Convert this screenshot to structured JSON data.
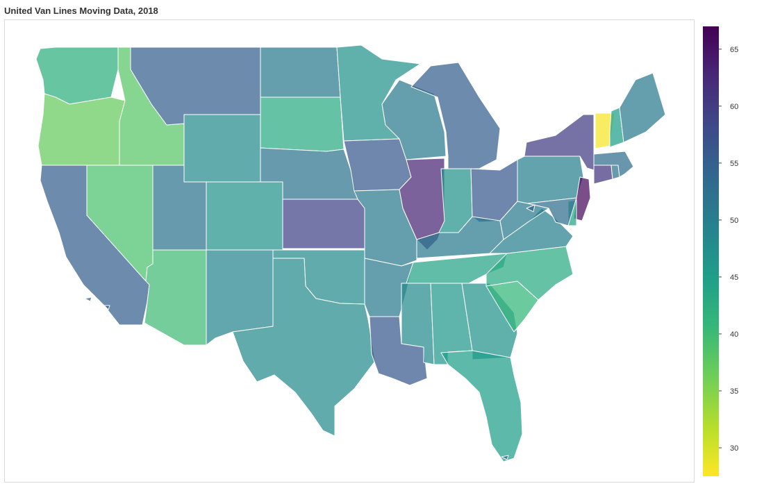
{
  "title": "United Van Lines Moving Data, 2018",
  "colorbar": {
    "min": 27.5,
    "max": 67,
    "ticks": [
      30,
      35,
      40,
      45,
      50,
      55,
      60,
      65
    ],
    "colorscale": [
      "#fde725",
      "#b5de2b",
      "#6ece58",
      "#35b779",
      "#1f9e89",
      "#26828e",
      "#31688e",
      "#3e4989",
      "#482878",
      "#440154"
    ]
  },
  "chart_data": {
    "type": "choropleth",
    "title": "United Van Lines Moving Data, 2018",
    "color_range": [
      27.5,
      67
    ],
    "states": [
      {
        "name": "Washington",
        "value": 42
      },
      {
        "name": "Oregon",
        "value": 37
      },
      {
        "name": "California",
        "value": 55
      },
      {
        "name": "Idaho",
        "value": 38
      },
      {
        "name": "Nevada",
        "value": 39
      },
      {
        "name": "Arizona",
        "value": 40
      },
      {
        "name": "Montana",
        "value": 55
      },
      {
        "name": "Wyoming",
        "value": 48
      },
      {
        "name": "Utah",
        "value": 52
      },
      {
        "name": "Colorado",
        "value": 47
      },
      {
        "name": "New Mexico",
        "value": 49
      },
      {
        "name": "North Dakota",
        "value": 51
      },
      {
        "name": "South Dakota",
        "value": 43
      },
      {
        "name": "Nebraska",
        "value": 52
      },
      {
        "name": "Kansas",
        "value": 59
      },
      {
        "name": "Oklahoma",
        "value": 48
      },
      {
        "name": "Texas",
        "value": 48
      },
      {
        "name": "Minnesota",
        "value": 47
      },
      {
        "name": "Iowa",
        "value": 56
      },
      {
        "name": "Missouri",
        "value": 51
      },
      {
        "name": "Arkansas",
        "value": 51
      },
      {
        "name": "Louisiana",
        "value": 56
      },
      {
        "name": "Wisconsin",
        "value": 51
      },
      {
        "name": "Illinois",
        "value": 63
      },
      {
        "name": "Michigan",
        "value": 55
      },
      {
        "name": "Indiana",
        "value": 47
      },
      {
        "name": "Ohio",
        "value": 56
      },
      {
        "name": "Kentucky",
        "value": 51
      },
      {
        "name": "Tennessee",
        "value": 44
      },
      {
        "name": "Mississippi",
        "value": 48
      },
      {
        "name": "Alabama",
        "value": 46
      },
      {
        "name": "Georgia",
        "value": 47
      },
      {
        "name": "Florida",
        "value": 45
      },
      {
        "name": "South Carolina",
        "value": 41
      },
      {
        "name": "North Carolina",
        "value": 43
      },
      {
        "name": "Virginia",
        "value": 50
      },
      {
        "name": "West Virginia",
        "value": 51
      },
      {
        "name": "Pennsylvania",
        "value": 50
      },
      {
        "name": "New York",
        "value": 60
      },
      {
        "name": "New Jersey",
        "value": 66
      },
      {
        "name": "Delaware",
        "value": 44
      },
      {
        "name": "Maryland",
        "value": 53
      },
      {
        "name": "Connecticut",
        "value": 61
      },
      {
        "name": "Rhode Island",
        "value": 52
      },
      {
        "name": "Massachusetts",
        "value": 53
      },
      {
        "name": "Vermont",
        "value": 28
      },
      {
        "name": "New Hampshire",
        "value": 45
      },
      {
        "name": "Maine",
        "value": 51
      }
    ]
  }
}
